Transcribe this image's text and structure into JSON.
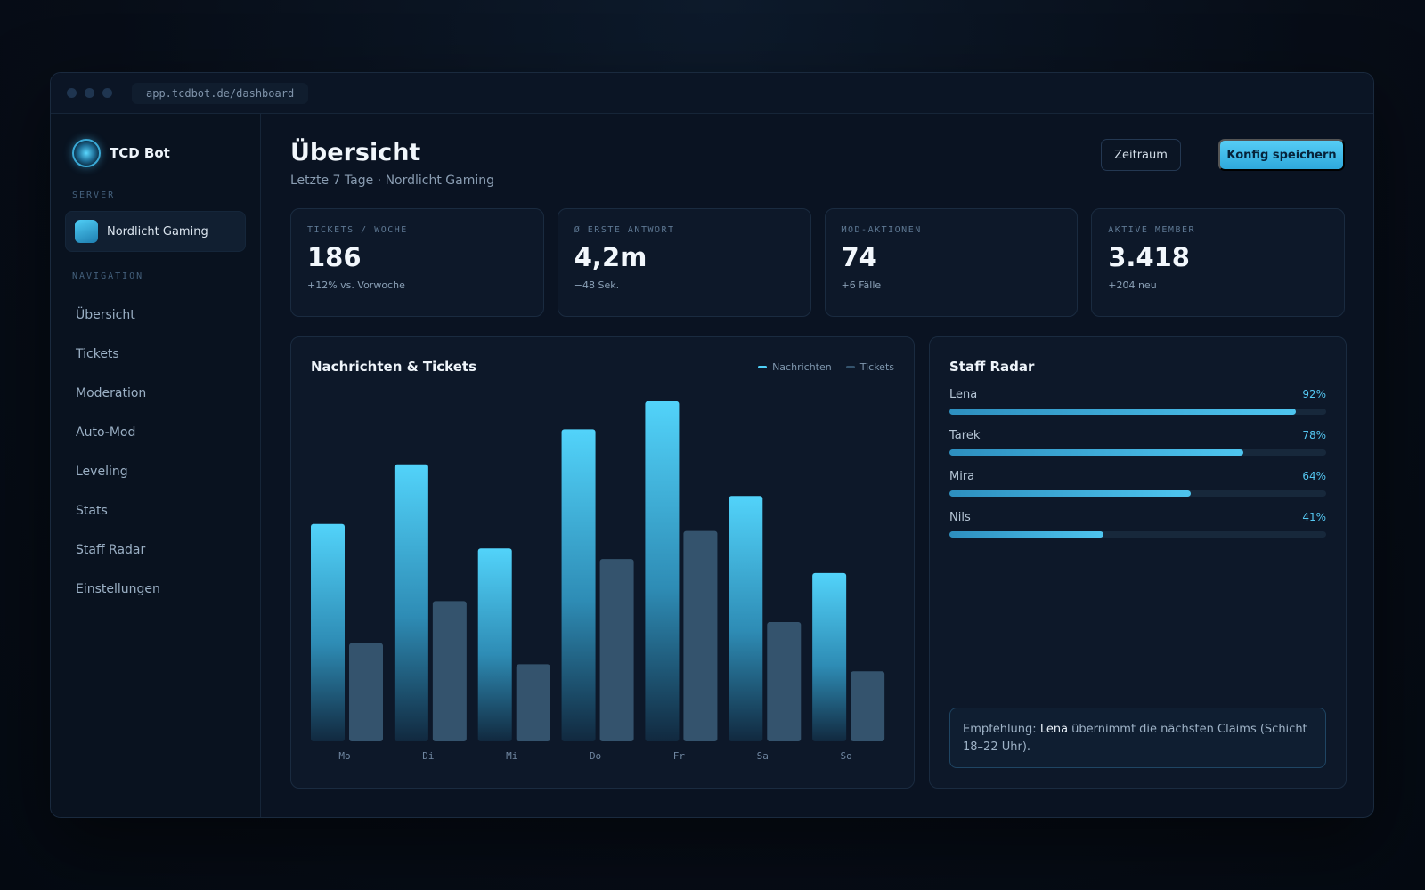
{
  "browser": {
    "url": "app.tcdbot.de/dashboard"
  },
  "sidebar": {
    "brand": "TCD Bot",
    "server_label": "SERVER",
    "server_name": "Nordlicht Gaming",
    "nav_label": "NAVIGATION",
    "items": [
      {
        "label": "Übersicht"
      },
      {
        "label": "Tickets"
      },
      {
        "label": "Moderation"
      },
      {
        "label": "Auto-Mod"
      },
      {
        "label": "Leveling"
      },
      {
        "label": "Stats"
      },
      {
        "label": "Staff Radar"
      },
      {
        "label": "Einstellungen"
      }
    ]
  },
  "header": {
    "title": "Übersicht",
    "subtitle": "Letzte 7 Tage · Nordlicht Gaming",
    "range_button": "Zeitraum",
    "save_button": "Konfig speichern"
  },
  "kpis": [
    {
      "label": "TICKETS / WOCHE",
      "value": "186",
      "delta": "+12% vs. Vorwoche"
    },
    {
      "label": "Ø ERSTE ANTWORT",
      "value": "4,2m",
      "delta": "−48 Sek."
    },
    {
      "label": "MOD-AKTIONEN",
      "value": "74",
      "delta": "+6 Fälle"
    },
    {
      "label": "AKTIVE MEMBER",
      "value": "3.418",
      "delta": "+204 neu"
    }
  ],
  "chart_panel": {
    "title": "Nachrichten & Tickets"
  },
  "chart_data": {
    "type": "bar",
    "categories": [
      "Mo",
      "Di",
      "Mi",
      "Do",
      "Fr",
      "Sa",
      "So"
    ],
    "series": [
      {
        "name": "Nachrichten",
        "values": [
          62,
          79,
          55,
          89,
          97,
          70,
          48
        ],
        "color": "#4fd0f7"
      },
      {
        "name": "Tickets",
        "values": [
          28,
          40,
          22,
          52,
          60,
          34,
          20
        ],
        "color": "#34536d"
      }
    ],
    "ylim": [
      0,
      100
    ],
    "grid": false,
    "legend": "top-right"
  },
  "staff": {
    "title": "Staff Radar",
    "members": [
      {
        "name": "Lena",
        "pct_label": "92%",
        "value": 0.92
      },
      {
        "name": "Tarek",
        "pct_label": "78%",
        "value": 0.78
      },
      {
        "name": "Mira",
        "pct_label": "64%",
        "value": 0.64
      },
      {
        "name": "Nils",
        "pct_label": "41%",
        "value": 0.41
      }
    ],
    "reco_prefix": "Empfehlung:",
    "reco_name": "Lena",
    "reco_text": "übernimmt die nächsten Claims (Schicht 18–22 Uhr)."
  },
  "colors": {
    "accent": "#4fd0f7",
    "background": "#070d17",
    "panel": "#0d1829"
  }
}
